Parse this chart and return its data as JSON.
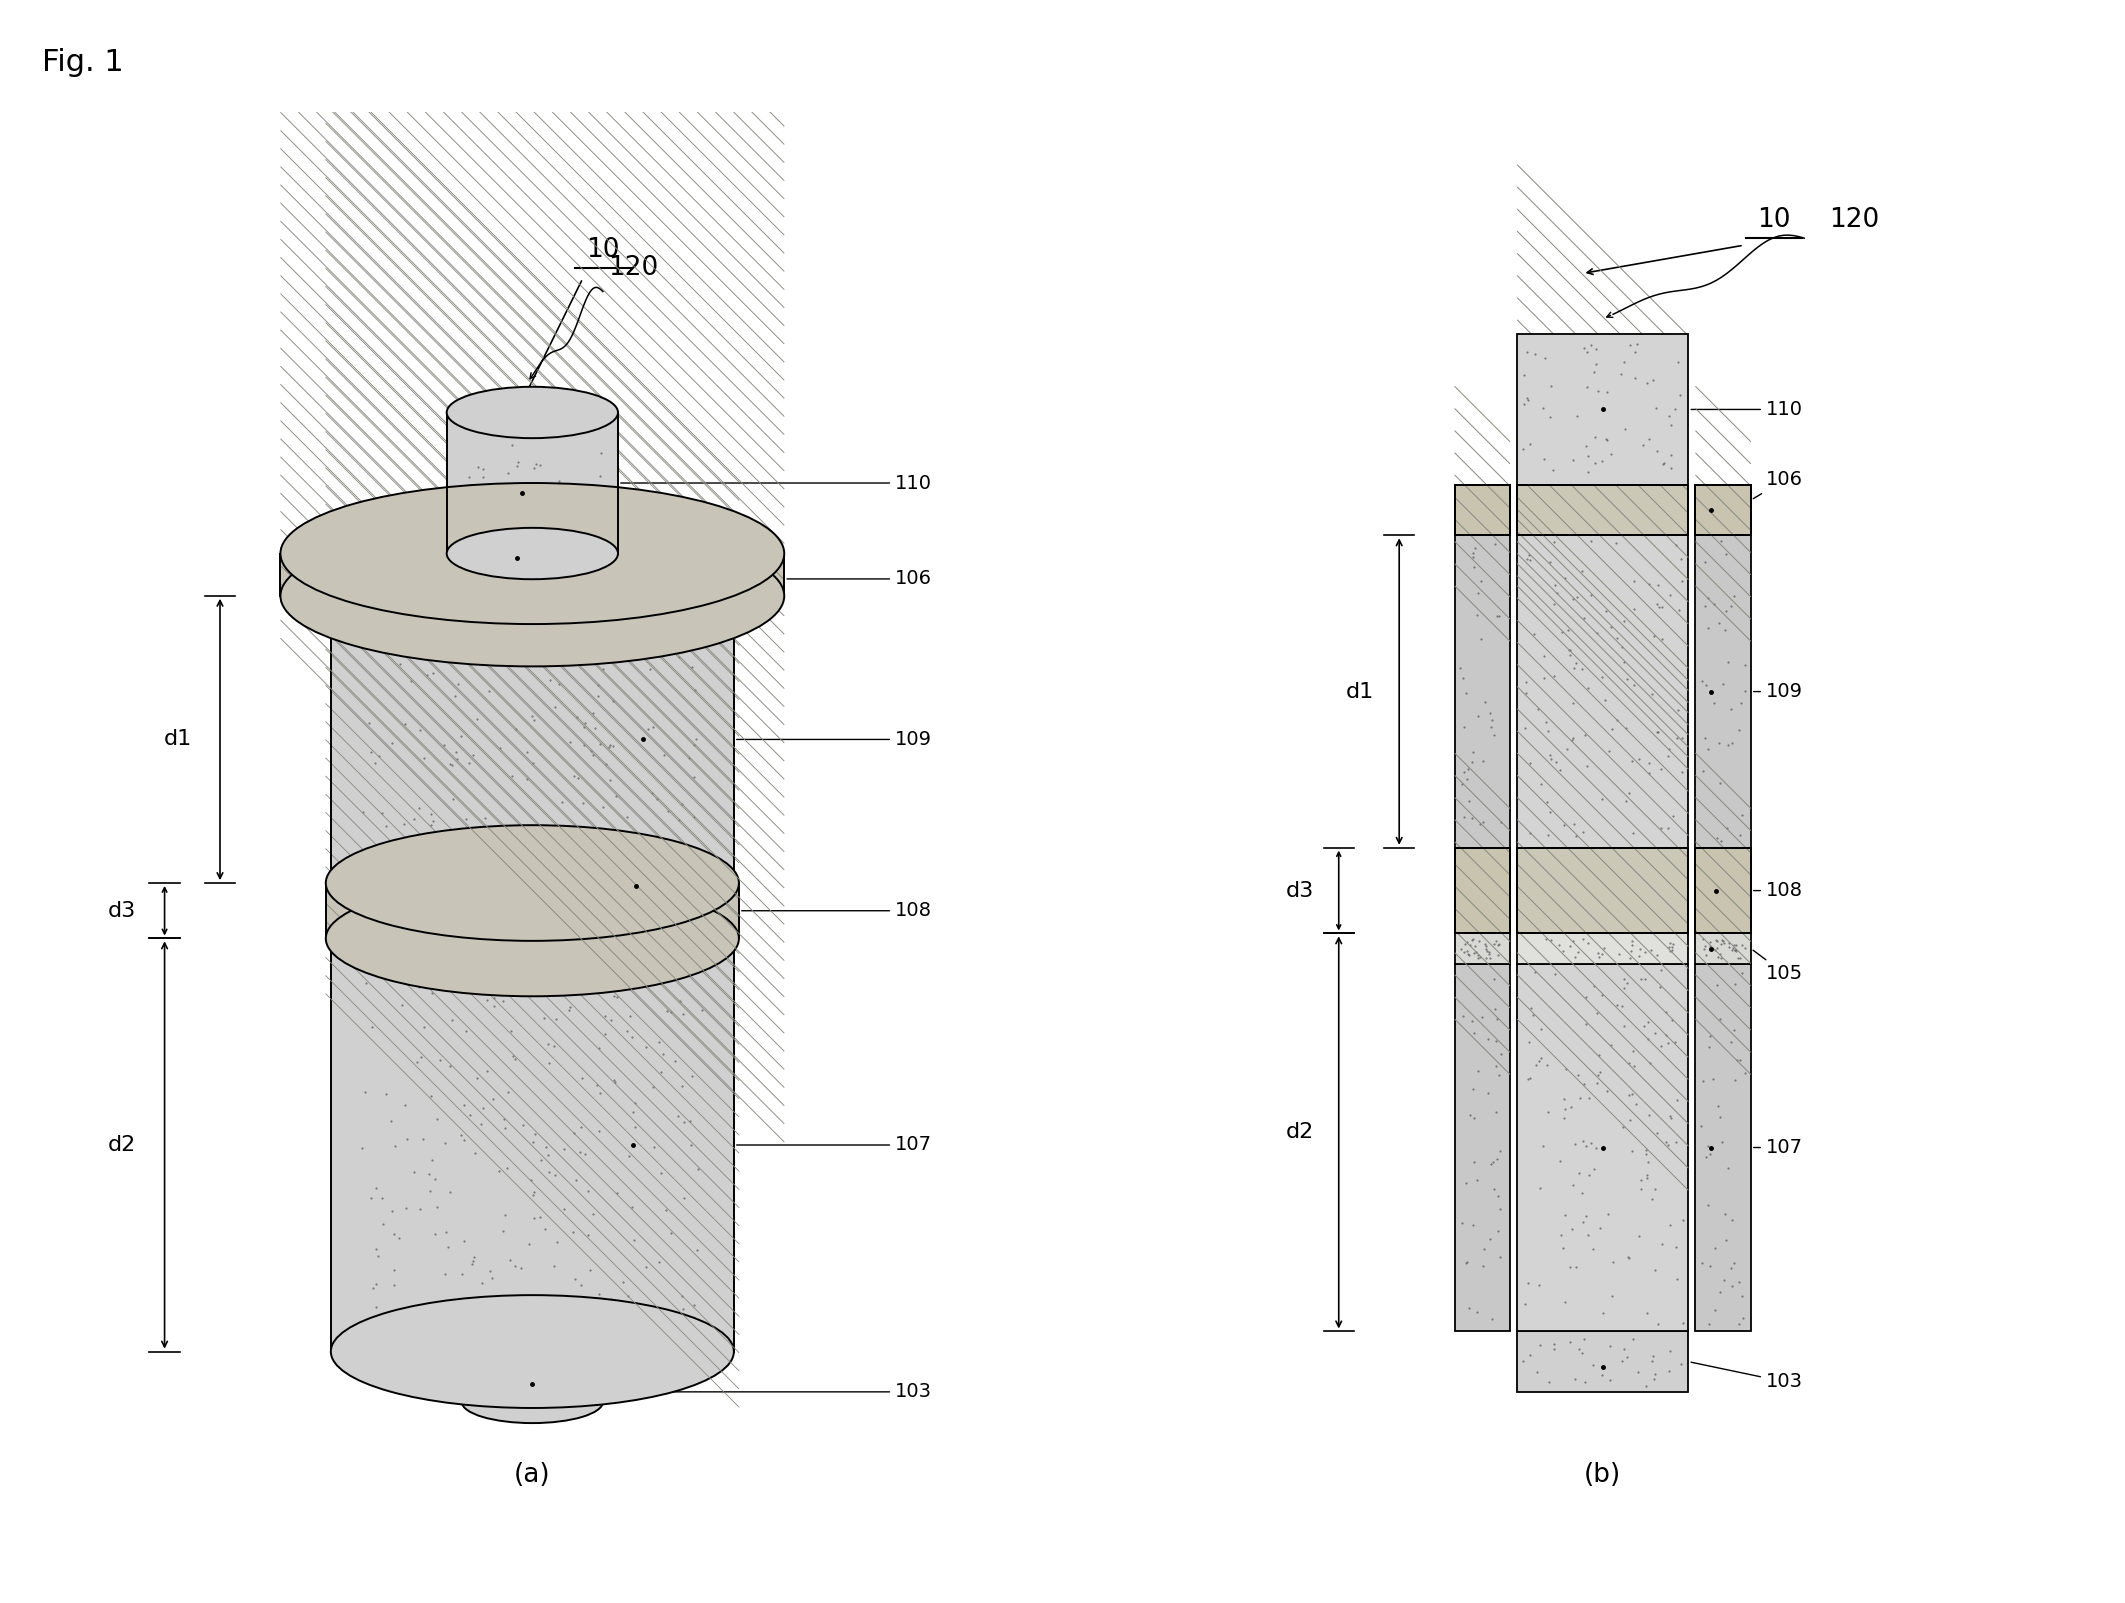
{
  "fig_label": "Fig. 1",
  "bg_color": "#ffffff",
  "subfig_a_label": "(a)",
  "subfig_b_label": "(b)",
  "device_label": "10",
  "gate_label": "120",
  "colors": {
    "pillar_stipple": "#d0d0d0",
    "gate_hatch_fill": "#c8c4b8",
    "disc_hatch_fill": "#c0bcb8",
    "outline": "#000000",
    "white": "#ffffff",
    "dot": "#555555"
  },
  "font_size_fig": 20,
  "font_size_label": 16,
  "font_size_ref": 14
}
